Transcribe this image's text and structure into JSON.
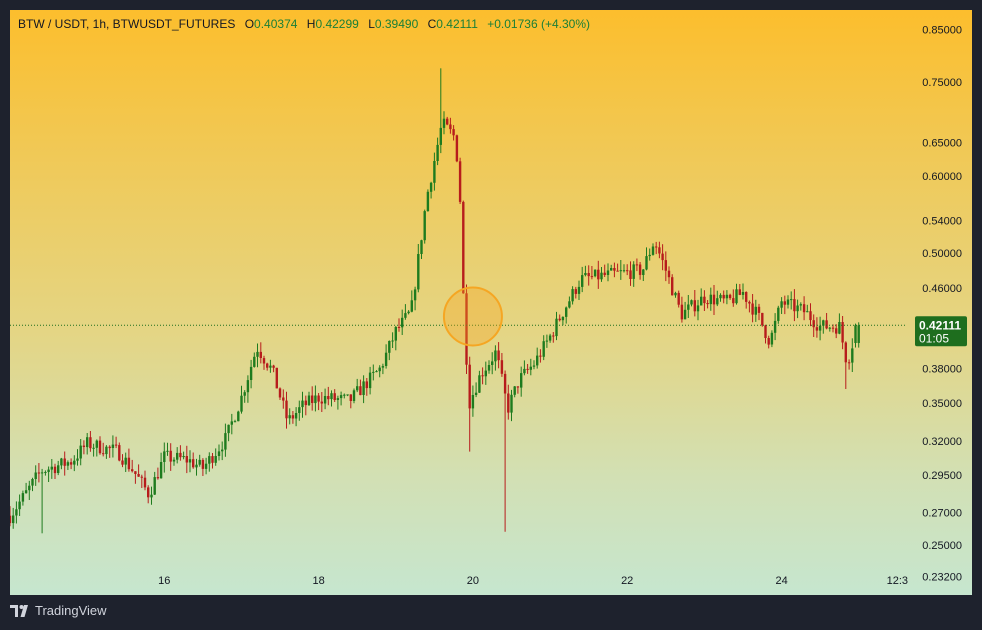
{
  "header": {
    "symbol": "BTW / USDT, 1h, BTWUSDT_FUTURES",
    "open_label": "O",
    "open": "0.40374",
    "high_label": "H",
    "high": "0.42299",
    "low_label": "L",
    "low": "0.39490",
    "close_label": "C",
    "close": "0.42111",
    "change": "+0.01736 (+4.30%)"
  },
  "price_badge": {
    "price": "0.42111",
    "countdown": "01:05"
  },
  "branding": {
    "name": "TradingView",
    "icon": "tradingview-logo-icon"
  },
  "colors": {
    "up": "#1e7b1e",
    "down": "#b71c1c",
    "badge": "#1e6e1e",
    "highlight": "#f5a623"
  },
  "chart_data": {
    "type": "candlestick",
    "title": "",
    "y_scale": "log",
    "ylim": [
      0.222,
      0.89
    ],
    "y_ticks": [
      "0.85000",
      "0.75000",
      "0.65000",
      "0.60000",
      "0.54000",
      "0.50000",
      "0.46000",
      "0.38000",
      "0.35000",
      "0.32000",
      "0.29500",
      "0.27000",
      "0.25000",
      "0.23200"
    ],
    "x_ticks": [
      "16",
      "18",
      "20",
      "22",
      "24",
      "12:3"
    ],
    "x_tick_positions": [
      16,
      18,
      20,
      22,
      24,
      25.5
    ],
    "xlim": [
      14.0,
      25.6
    ],
    "current_price": 0.42111,
    "highlight_marker": {
      "x": 20.0,
      "y": 0.43
    },
    "keypoints": [
      {
        "x": 14.0,
        "y": 0.268
      },
      {
        "x": 14.2,
        "y": 0.282
      },
      {
        "x": 14.4,
        "y": 0.298
      },
      {
        "x": 14.8,
        "y": 0.305
      },
      {
        "x": 15.0,
        "y": 0.318
      },
      {
        "x": 15.4,
        "y": 0.312
      },
      {
        "x": 15.6,
        "y": 0.298
      },
      {
        "x": 15.8,
        "y": 0.282
      },
      {
        "x": 16.0,
        "y": 0.308
      },
      {
        "x": 16.3,
        "y": 0.306
      },
      {
        "x": 16.5,
        "y": 0.3
      },
      {
        "x": 16.8,
        "y": 0.322
      },
      {
        "x": 17.0,
        "y": 0.355
      },
      {
        "x": 17.2,
        "y": 0.4
      },
      {
        "x": 17.4,
        "y": 0.378
      },
      {
        "x": 17.6,
        "y": 0.335
      },
      {
        "x": 17.8,
        "y": 0.348
      },
      {
        "x": 18.0,
        "y": 0.355
      },
      {
        "x": 18.4,
        "y": 0.352
      },
      {
        "x": 18.8,
        "y": 0.38
      },
      {
        "x": 19.0,
        "y": 0.415
      },
      {
        "x": 19.2,
        "y": 0.435
      },
      {
        "x": 19.4,
        "y": 0.57
      },
      {
        "x": 19.6,
        "y": 0.68
      },
      {
        "x": 19.75,
        "y": 0.66
      },
      {
        "x": 19.82,
        "y": 0.61
      },
      {
        "x": 19.88,
        "y": 0.44
      },
      {
        "x": 19.95,
        "y": 0.35
      },
      {
        "x": 20.1,
        "y": 0.375
      },
      {
        "x": 20.3,
        "y": 0.395
      },
      {
        "x": 20.45,
        "y": 0.345
      },
      {
        "x": 20.6,
        "y": 0.37
      },
      {
        "x": 20.8,
        "y": 0.385
      },
      {
        "x": 21.0,
        "y": 0.41
      },
      {
        "x": 21.2,
        "y": 0.44
      },
      {
        "x": 21.4,
        "y": 0.47
      },
      {
        "x": 21.8,
        "y": 0.475
      },
      {
        "x": 22.2,
        "y": 0.48
      },
      {
        "x": 22.35,
        "y": 0.515
      },
      {
        "x": 22.5,
        "y": 0.48
      },
      {
        "x": 22.7,
        "y": 0.432
      },
      {
        "x": 23.0,
        "y": 0.45
      },
      {
        "x": 23.3,
        "y": 0.445
      },
      {
        "x": 23.5,
        "y": 0.455
      },
      {
        "x": 23.7,
        "y": 0.43
      },
      {
        "x": 23.85,
        "y": 0.405
      },
      {
        "x": 24.0,
        "y": 0.445
      },
      {
        "x": 24.3,
        "y": 0.435
      },
      {
        "x": 24.5,
        "y": 0.42
      },
      {
        "x": 24.75,
        "y": 0.42
      },
      {
        "x": 24.85,
        "y": 0.385
      },
      {
        "x": 24.92,
        "y": 0.404
      },
      {
        "x": 25.0,
        "y": 0.421
      }
    ],
    "extreme_wicks": [
      {
        "x": 19.58,
        "high": 0.775
      },
      {
        "x": 20.42,
        "low": 0.258
      },
      {
        "x": 14.4,
        "low": 0.257
      },
      {
        "x": 19.95,
        "low": 0.312
      },
      {
        "x": 24.85,
        "low": 0.362
      }
    ]
  }
}
